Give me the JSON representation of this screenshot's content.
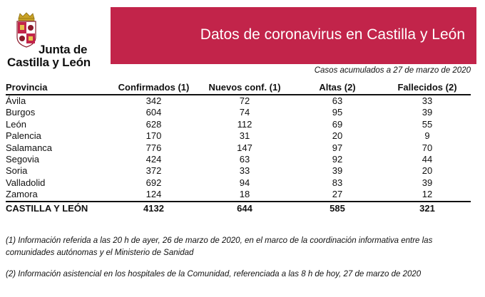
{
  "logo": {
    "line1": "Junta de",
    "line2": "Castilla y León"
  },
  "banner": {
    "title": "Datos de coronavirus en Castilla y León",
    "color": "#c2244a"
  },
  "subtitle": "Casos acumulados a 27 de marzo de 2020",
  "table": {
    "headers": [
      "Provincia",
      "Confirmados (1)",
      "Nuevos conf. (1)",
      "Altas (2)",
      "Fallecidos (2)"
    ],
    "rows": [
      [
        "Ávila",
        "342",
        "72",
        "63",
        "33"
      ],
      [
        "Burgos",
        "604",
        "74",
        "95",
        "39"
      ],
      [
        "León",
        "628",
        "112",
        "69",
        "55"
      ],
      [
        "Palencia",
        "170",
        "31",
        "20",
        "9"
      ],
      [
        "Salamanca",
        "776",
        "147",
        "97",
        "70"
      ],
      [
        "Segovia",
        "424",
        "63",
        "92",
        "44"
      ],
      [
        "Soria",
        "372",
        "33",
        "39",
        "20"
      ],
      [
        "Valladolid",
        "692",
        "94",
        "83",
        "39"
      ],
      [
        "Zamora",
        "124",
        "18",
        "27",
        "12"
      ]
    ],
    "total": [
      "CASTILLA Y LEÓN",
      "4132",
      "644",
      "585",
      "321"
    ]
  },
  "notes": [
    "(1) Información referida a las 20 h de ayer, 26 de marzo de 2020, en el marco de la coordinación informativa entre las comunidades autónomas y el Ministerio de Sanidad",
    "(2) Información asistencial en los hospitales de la Comunidad, referenciada a las 8 h de hoy, 27 de marzo de 2020"
  ]
}
